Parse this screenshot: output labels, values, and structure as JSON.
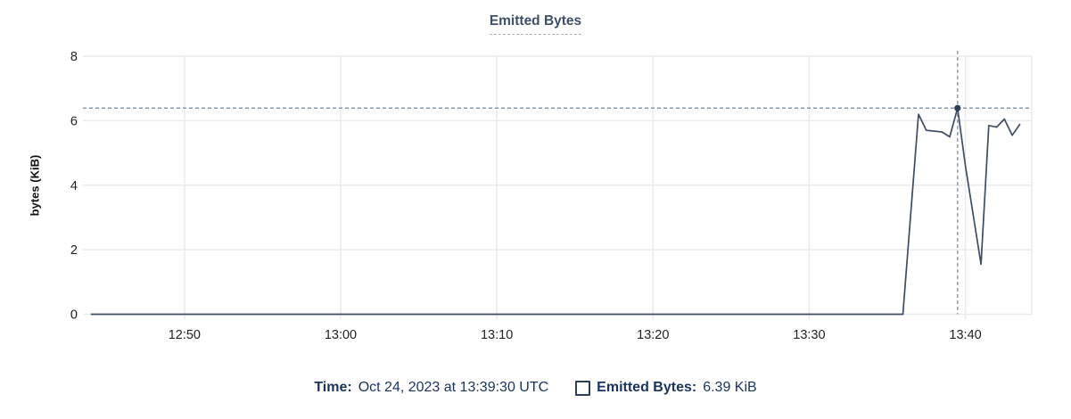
{
  "title": "Emitted Bytes",
  "ylabel": "bytes (KiB)",
  "colors": {
    "line": "#3e4d64",
    "dot": "#2c3d56",
    "crosshair": "#8598ac",
    "grid": "#e9eaec",
    "tick_text": "#202124",
    "title_text": "#3e4f69",
    "legend_text": "#1a335c",
    "title_underline": "#a9b2bd"
  },
  "tooltip": {
    "time_label": "Time:",
    "time_value": "Oct 24, 2023 at 13:39:30 UTC",
    "series_label": "Emitted Bytes:",
    "series_value": "6.39 KiB",
    "swatch_icon": "square-outline-icon"
  },
  "chart_data": {
    "type": "line",
    "title": "Emitted Bytes",
    "xlabel": "",
    "ylabel": "bytes (KiB)",
    "ylim": [
      0,
      8
    ],
    "yticks": [
      0,
      2,
      4,
      6,
      8
    ],
    "x_domain": [
      "12:43:30",
      "13:44:15"
    ],
    "xticks": [
      {
        "t": "12:50:00",
        "label": "12:50"
      },
      {
        "t": "13:00:00",
        "label": "13:00"
      },
      {
        "t": "13:10:00",
        "label": "13:10"
      },
      {
        "t": "13:20:00",
        "label": "13:20"
      },
      {
        "t": "13:30:00",
        "label": "13:30"
      },
      {
        "t": "13:40:00",
        "label": "13:40"
      }
    ],
    "grid": true,
    "legend_position": "bottom",
    "series": [
      {
        "name": "Emitted Bytes",
        "points": [
          [
            "12:44:00",
            0
          ],
          [
            "13:36:00",
            0
          ],
          [
            "13:37:00",
            6.2
          ],
          [
            "13:37:30",
            5.7
          ],
          [
            "13:38:30",
            5.65
          ],
          [
            "13:39:00",
            5.5
          ],
          [
            "13:39:30",
            6.39
          ],
          [
            "13:40:00",
            4.6
          ],
          [
            "13:41:00",
            1.55
          ],
          [
            "13:41:30",
            5.85
          ],
          [
            "13:42:00",
            5.8
          ],
          [
            "13:42:30",
            6.05
          ],
          [
            "13:43:00",
            5.55
          ],
          [
            "13:43:30",
            5.9
          ]
        ]
      }
    ],
    "highlight": {
      "t": "13:39:30",
      "v": 6.39,
      "crosshair": true
    }
  }
}
